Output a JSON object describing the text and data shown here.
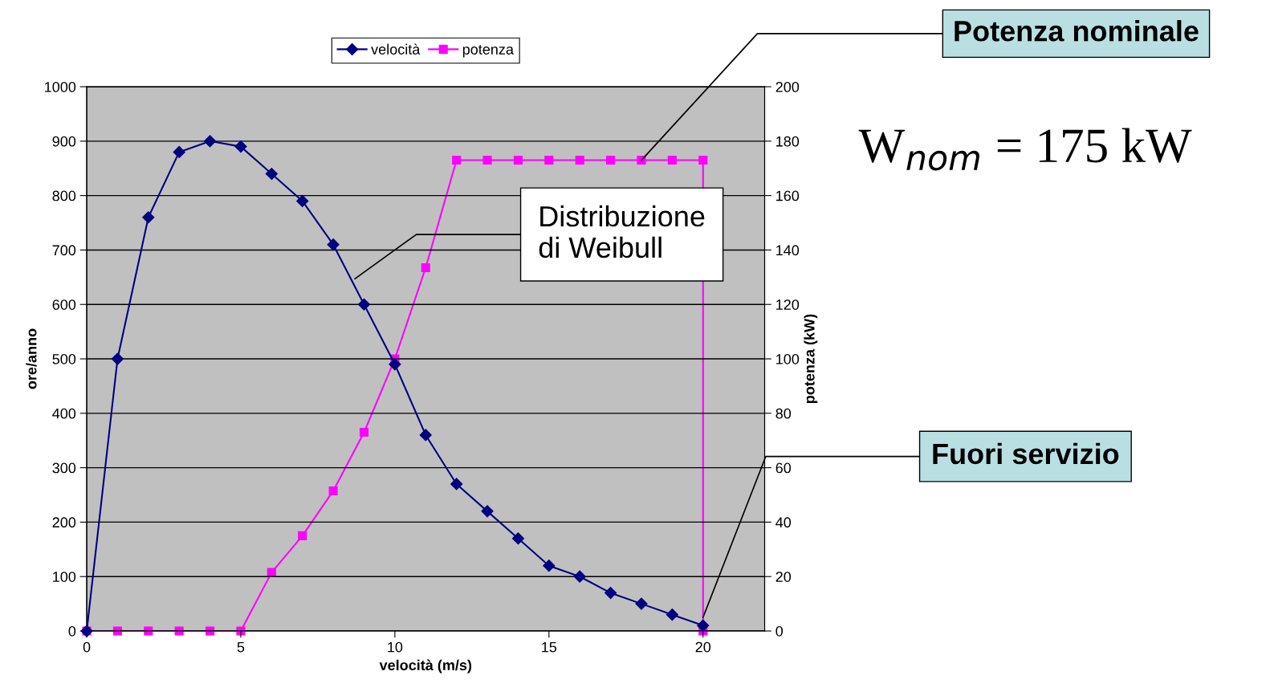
{
  "chart_data": {
    "type": "line",
    "xlabel": "velocità (m/s)",
    "ylabel": "ore/anno",
    "y2label": "potenza (kW)",
    "x": [
      0,
      1,
      2,
      3,
      4,
      5,
      6,
      7,
      8,
      9,
      10,
      11,
      12,
      13,
      14,
      15,
      16,
      17,
      18,
      19,
      20
    ],
    "xlim": [
      0,
      22
    ],
    "xticks": [
      0,
      5,
      10,
      15,
      20
    ],
    "ylim": [
      0,
      1000
    ],
    "yticks": [
      0,
      100,
      200,
      300,
      400,
      500,
      600,
      700,
      800,
      900,
      1000
    ],
    "y2lim": [
      0,
      200
    ],
    "y2ticks": [
      0,
      20,
      40,
      60,
      80,
      100,
      120,
      140,
      160,
      180,
      200
    ],
    "grid": "y",
    "legend": "top",
    "series": [
      {
        "name": "velocità",
        "color": "#000080",
        "marker": "diamond",
        "values": [
          0,
          500,
          760,
          880,
          900,
          890,
          840,
          790,
          710,
          600,
          490,
          360,
          270,
          220,
          170,
          120,
          100,
          70,
          50,
          30,
          10
        ]
      },
      {
        "name": "potenza",
        "color": "#ff00ff",
        "marker": "square",
        "axis": "y2",
        "x": [
          0,
          1,
          2,
          3,
          4,
          5,
          6,
          7,
          8,
          9,
          10,
          11,
          12,
          13,
          14,
          15,
          16,
          17,
          18,
          19,
          20,
          20
        ],
        "values": [
          0,
          0,
          0,
          0,
          0,
          0,
          21.5,
          35,
          51.5,
          73,
          100,
          133.5,
          173,
          173,
          173,
          173,
          173,
          173,
          173,
          173,
          173,
          0
        ]
      }
    ],
    "annotations": [
      {
        "text": "Potenza nominale",
        "x": 18,
        "y": 865
      },
      {
        "text": "W$_{nom}$ = 175 kW"
      },
      {
        "text": "Distribuzione\ndi Weibull",
        "x": 8.7,
        "y": 647
      },
      {
        "text": "Fuori servizio",
        "x": 20,
        "y": 25
      }
    ]
  }
}
